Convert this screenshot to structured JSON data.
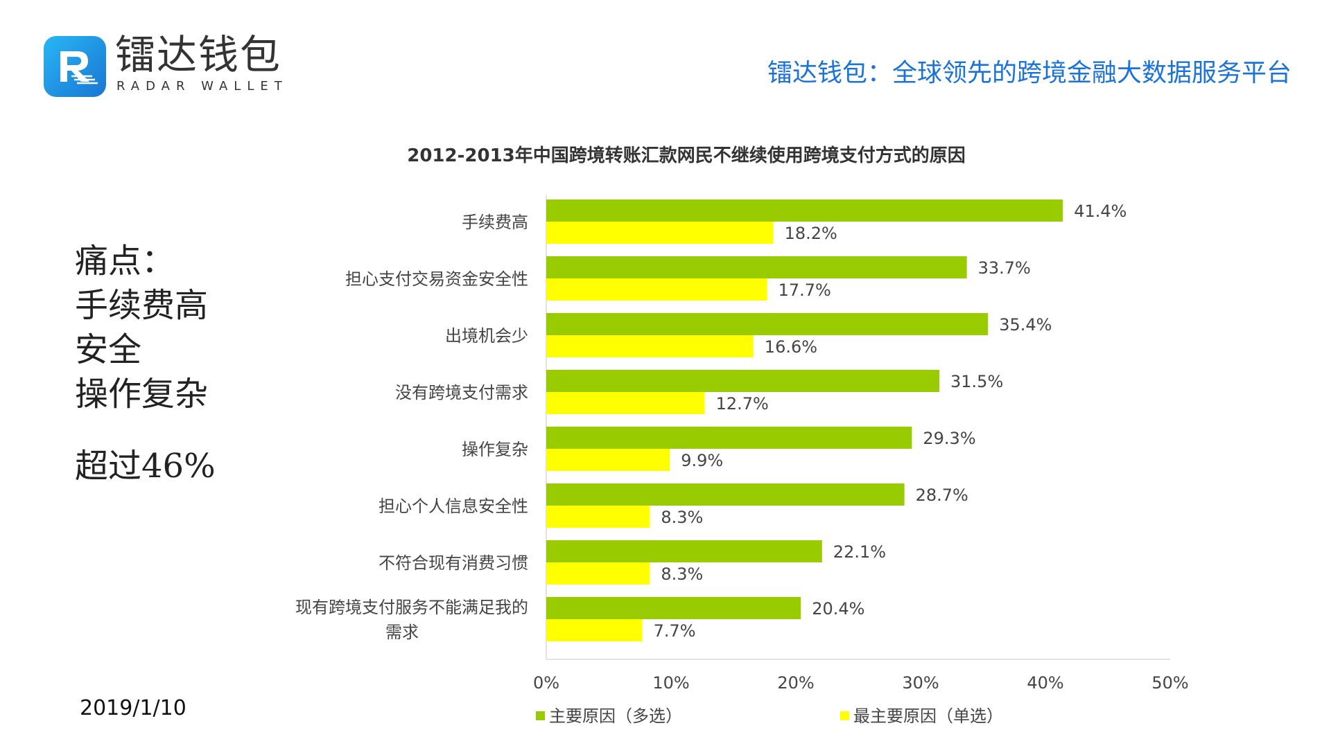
{
  "header": {
    "brand_cn": "镭达钱包",
    "brand_en": "RADAR WALLET",
    "tagline": "镭达钱包：全球领先的跨境金融大数据服务平台"
  },
  "sidebar": {
    "pain_title": "痛点：",
    "pain_items": [
      "手续费高",
      "安全",
      "操作复杂"
    ],
    "highlight": "超过46%"
  },
  "footer": {
    "date": "2019/1/10"
  },
  "colors": {
    "primary": "#99cc00",
    "secondary": "#ffff00",
    "accent": "#1a73d9"
  },
  "chart_data": {
    "type": "bar",
    "orientation": "horizontal",
    "title": "2012-2013年中国跨境转账汇款网民不继续使用跨境支付方式的原因",
    "categories": [
      "手续费高",
      "担心支付交易资金安全性",
      "出境机会少",
      "没有跨境支付需求",
      "操作复杂",
      "担心个人信息安全性",
      "不符合现有消费习惯",
      "现有跨境支付服务不能满足我的需求"
    ],
    "category_lines": [
      [
        "手续费高"
      ],
      [
        "担心支付交易资金安全性"
      ],
      [
        "出境机会少"
      ],
      [
        "没有跨境支付需求"
      ],
      [
        "操作复杂"
      ],
      [
        "担心个人信息安全性"
      ],
      [
        "不符合现有消费习惯"
      ],
      [
        "现有跨境支付服务不能满足我的",
        "需求"
      ]
    ],
    "series": [
      {
        "name": "主要原因（多选）",
        "color": "#99cc00",
        "values": [
          41.4,
          33.7,
          35.4,
          31.5,
          29.3,
          28.7,
          22.1,
          20.4
        ],
        "labels": [
          "41.4%",
          "33.7%",
          "35.4%",
          "31.5%",
          "29.3%",
          "28.7%",
          "22.1%",
          "20.4%"
        ]
      },
      {
        "name": "最主要原因（单选）",
        "color": "#ffff00",
        "values": [
          18.2,
          17.7,
          16.6,
          12.7,
          9.9,
          8.3,
          8.3,
          7.7
        ],
        "labels": [
          "18.2%",
          "17.7%",
          "16.6%",
          "12.7%",
          "9.9%",
          "8.3%",
          "8.3%",
          "7.7%"
        ]
      }
    ],
    "xlim": [
      0,
      50
    ],
    "xticks": [
      "0%",
      "10%",
      "20%",
      "30%",
      "40%",
      "50%"
    ],
    "legend_position": "bottom"
  }
}
